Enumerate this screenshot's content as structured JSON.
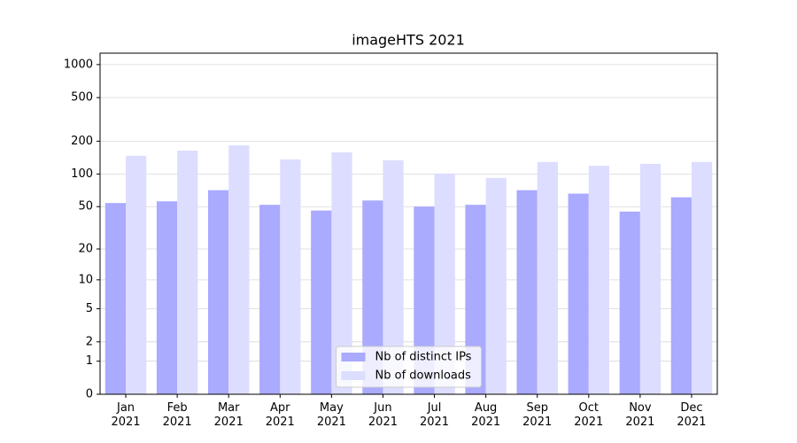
{
  "chart_data": {
    "type": "bar",
    "title": "imageHTS 2021",
    "categories": [
      "Jan\n2021",
      "Feb\n2021",
      "Mar\n2021",
      "Apr\n2021",
      "May\n2021",
      "Jun\n2021",
      "Jul\n2021",
      "Aug\n2021",
      "Sep\n2021",
      "Oct\n2021",
      "Nov\n2021",
      "Dec\n2021"
    ],
    "series": [
      {
        "name": "Nb of distinct IPs",
        "color": "#aaaaff",
        "values": [
          54,
          56,
          71,
          52,
          46,
          57,
          50,
          52,
          71,
          66,
          45,
          61
        ]
      },
      {
        "name": "Nb of downloads",
        "color": "#ddddff",
        "values": [
          147,
          164,
          183,
          136,
          158,
          134,
          101,
          92,
          129,
          119,
          124,
          129
        ]
      }
    ],
    "yscale": "log1p",
    "ylim": [
      0,
      1270
    ],
    "yticks": [
      0,
      1,
      2,
      5,
      10,
      20,
      50,
      100,
      200,
      500,
      1000
    ],
    "grid": true,
    "legend": "lower center"
  }
}
